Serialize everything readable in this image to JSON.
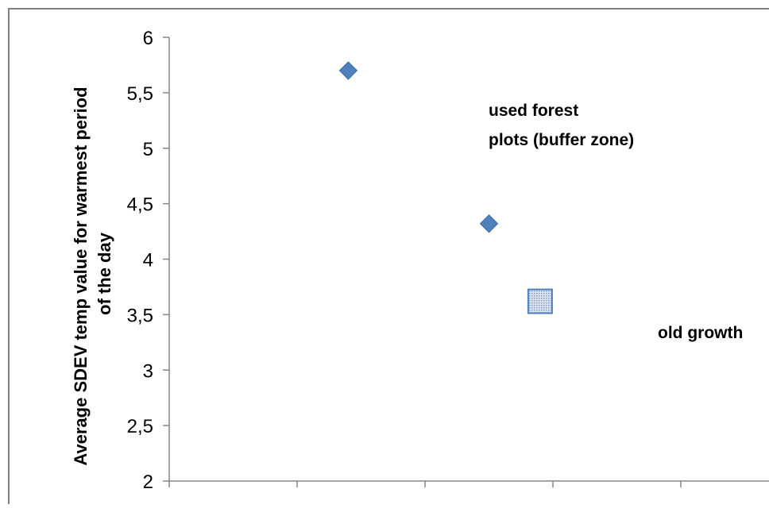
{
  "chart_data": {
    "type": "scatter",
    "title": "",
    "xlabel": "",
    "ylabel_lines": [
      "Average SDEV temp value for warmest period",
      "of the day"
    ],
    "ylim": [
      2,
      6
    ],
    "yticks": [
      "2",
      "2,5",
      "3",
      "3,5",
      "4",
      "4,5",
      "5",
      "5,5",
      "6"
    ],
    "yticks_values": [
      2,
      2.5,
      3,
      3.5,
      4,
      4.5,
      5,
      5.5,
      6
    ],
    "xlim": [
      0,
      5
    ],
    "xticks_values": [
      0,
      1,
      2,
      3,
      4,
      5
    ],
    "grid": false,
    "series": [
      {
        "marker": "diamond",
        "color": "#4F81BD",
        "points": [
          {
            "x": 1.4,
            "y": 5.7
          },
          {
            "x": 2.5,
            "y": 4.32
          }
        ]
      },
      {
        "marker": "square-dotted",
        "color": "#4F81BD",
        "points": [
          {
            "x": 2.9,
            "y": 3.62
          }
        ]
      }
    ],
    "annotations": [
      {
        "lines": [
          "used forest",
          "plots (buffer zone)"
        ]
      },
      {
        "lines": [
          "old growth"
        ]
      }
    ]
  }
}
